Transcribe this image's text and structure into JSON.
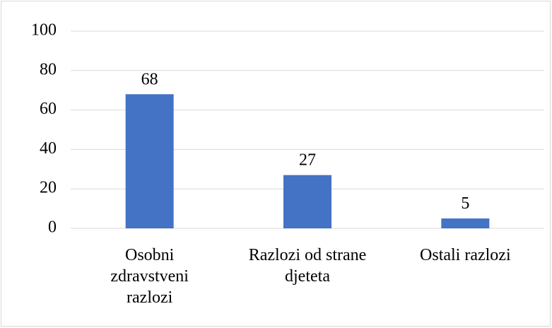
{
  "chart_data": {
    "type": "bar",
    "categories": [
      "Osobni zdravstveni razlozi",
      "Razlozi od strane djeteta",
      "Ostali razlozi"
    ],
    "values": [
      68,
      27,
      5
    ],
    "color": "#4472c4",
    "ylim": [
      0,
      100
    ],
    "yticks": [
      0,
      20,
      40,
      60,
      80,
      100
    ],
    "grid": true
  }
}
